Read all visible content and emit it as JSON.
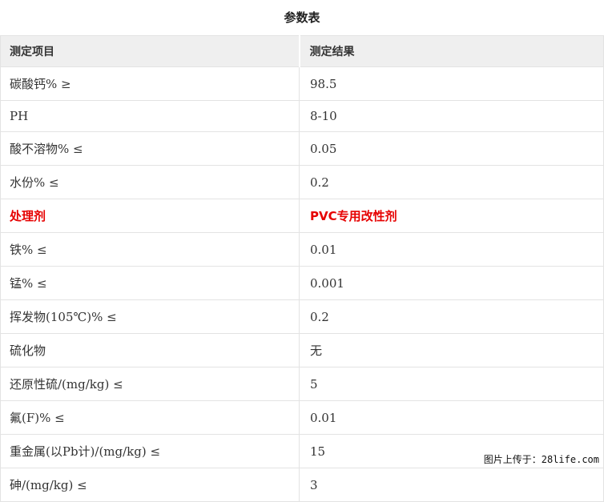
{
  "page": {
    "title": "参数表"
  },
  "table": {
    "headers": [
      "测定项目",
      "测定结果"
    ],
    "rows": [
      {
        "item": "碳酸钙% ≥",
        "value": "98.5",
        "highlight": false
      },
      {
        "item": "PH",
        "value": "8-10",
        "highlight": false
      },
      {
        "item": "酸不溶物% ≤",
        "value": "0.05",
        "highlight": false
      },
      {
        "item": "水份% ≤",
        "value": "0.2",
        "highlight": false
      },
      {
        "item": "处理剂",
        "value": "PVC专用改性剂",
        "highlight": true
      },
      {
        "item": "铁% ≤",
        "value": "0.01",
        "highlight": false
      },
      {
        "item": "锰% ≤",
        "value": "0.001",
        "highlight": false
      },
      {
        "item": "挥发物(105℃)% ≤",
        "value": "0.2",
        "highlight": false
      },
      {
        "item": "硫化物",
        "value": "无",
        "highlight": false
      },
      {
        "item": "还原性硫/(mg/kg) ≤",
        "value": "5",
        "highlight": false
      },
      {
        "item": "氟(F)% ≤",
        "value": "0.01",
        "highlight": false
      },
      {
        "item": "重金属(以Pb计)/(mg/kg) ≤",
        "value": "15",
        "highlight": false
      },
      {
        "item": "砷/(mg/kg) ≤",
        "value": "3",
        "highlight": false
      }
    ]
  },
  "watermark": {
    "text": "图片上传于：28life.com"
  },
  "colors": {
    "highlight_text": "#e60000",
    "header_bg": "#efefef",
    "border": "#e3e3e3",
    "text": "#333333"
  }
}
